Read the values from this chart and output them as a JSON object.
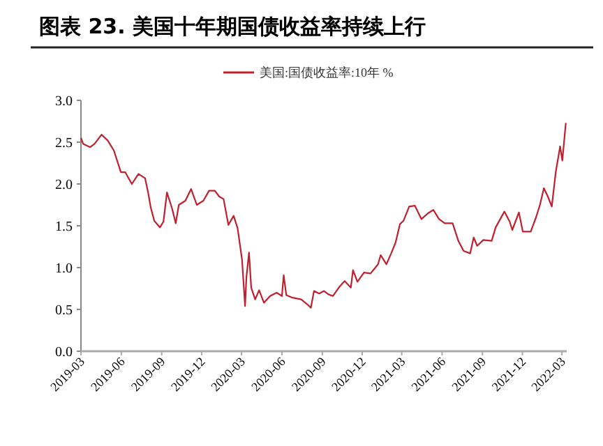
{
  "chart_data": {
    "type": "line",
    "title": "图表 23. 美国十年期国债收益率持续上行",
    "legend": "top",
    "grid": false,
    "x": [
      "2019-03-01",
      "2019-03-06",
      "2019-03-22",
      "2019-04-01",
      "2019-04-17",
      "2019-05-01",
      "2019-05-15",
      "2019-05-31",
      "2019-06-10",
      "2019-06-25",
      "2019-07-10",
      "2019-07-25",
      "2019-08-01",
      "2019-08-07",
      "2019-08-15",
      "2019-08-28",
      "2019-09-05",
      "2019-09-13",
      "2019-09-25",
      "2019-10-03",
      "2019-10-10",
      "2019-10-25",
      "2019-11-07",
      "2019-11-20",
      "2019-12-05",
      "2019-12-18",
      "2019-12-31",
      "2020-01-10",
      "2020-01-20",
      "2020-01-31",
      "2020-02-12",
      "2020-02-21",
      "2020-03-02",
      "2020-03-09",
      "2020-03-12",
      "2020-03-18",
      "2020-03-23",
      "2020-04-01",
      "2020-04-10",
      "2020-04-21",
      "2020-05-05",
      "2020-05-20",
      "2020-06-01",
      "2020-06-05",
      "2020-06-11",
      "2020-06-25",
      "2020-07-15",
      "2020-07-31",
      "2020-08-06",
      "2020-08-13",
      "2020-08-25",
      "2020-09-05",
      "2020-09-15",
      "2020-09-25",
      "2020-10-10",
      "2020-10-22",
      "2020-11-05",
      "2020-11-10",
      "2020-11-20",
      "2020-12-05",
      "2020-12-20",
      "2021-01-06",
      "2021-01-12",
      "2021-01-25",
      "2021-02-05",
      "2021-02-15",
      "2021-02-25",
      "2021-03-05",
      "2021-03-18",
      "2021-03-31",
      "2021-04-15",
      "2021-04-30",
      "2021-05-12",
      "2021-05-25",
      "2021-06-07",
      "2021-06-25",
      "2021-07-08",
      "2021-07-20",
      "2021-08-04",
      "2021-08-12",
      "2021-08-20",
      "2021-09-03",
      "2021-09-22",
      "2021-10-01",
      "2021-10-21",
      "2021-11-02",
      "2021-11-08",
      "2021-11-23",
      "2021-12-02",
      "2021-12-20",
      "2022-01-01",
      "2022-01-10",
      "2022-01-19",
      "2022-01-28",
      "2022-02-06",
      "2022-02-15",
      "2022-02-25",
      "2022-03-02",
      "2022-03-10"
    ],
    "series": [
      {
        "name": "美国:国债收益率:10年 %",
        "color": "#c0202e",
        "values": [
          2.55,
          2.48,
          2.44,
          2.48,
          2.59,
          2.52,
          2.4,
          2.14,
          2.14,
          2.0,
          2.12,
          2.07,
          1.9,
          1.72,
          1.56,
          1.48,
          1.55,
          1.9,
          1.7,
          1.53,
          1.75,
          1.8,
          1.94,
          1.75,
          1.8,
          1.92,
          1.92,
          1.85,
          1.82,
          1.51,
          1.62,
          1.47,
          1.1,
          0.54,
          0.88,
          1.18,
          0.76,
          0.62,
          0.73,
          0.58,
          0.66,
          0.7,
          0.66,
          0.91,
          0.67,
          0.64,
          0.62,
          0.55,
          0.52,
          0.72,
          0.69,
          0.72,
          0.68,
          0.66,
          0.77,
          0.84,
          0.76,
          0.97,
          0.83,
          0.94,
          0.93,
          1.04,
          1.15,
          1.04,
          1.17,
          1.3,
          1.52,
          1.56,
          1.73,
          1.74,
          1.58,
          1.65,
          1.69,
          1.58,
          1.53,
          1.53,
          1.32,
          1.2,
          1.17,
          1.36,
          1.26,
          1.33,
          1.32,
          1.48,
          1.67,
          1.55,
          1.45,
          1.66,
          1.43,
          1.43,
          1.6,
          1.75,
          1.95,
          1.85,
          1.73,
          2.14,
          2.45,
          2.28,
          2.73
        ]
      }
    ],
    "xlim": [
      "2019-03-01",
      "2022-03-12"
    ],
    "xticks": [
      {
        "value": "2019-03-01",
        "label": "2019-03"
      },
      {
        "value": "2019-06-01",
        "label": "2019-06"
      },
      {
        "value": "2019-09-01",
        "label": "2019-09"
      },
      {
        "value": "2019-12-01",
        "label": "2019-12"
      },
      {
        "value": "2020-03-01",
        "label": "2020-03"
      },
      {
        "value": "2020-06-01",
        "label": "2020-06"
      },
      {
        "value": "2020-09-01",
        "label": "2020-09"
      },
      {
        "value": "2020-12-01",
        "label": "2020-12"
      },
      {
        "value": "2021-03-01",
        "label": "2021-03"
      },
      {
        "value": "2021-06-01",
        "label": "2021-06"
      },
      {
        "value": "2021-09-01",
        "label": "2021-09"
      },
      {
        "value": "2021-12-01",
        "label": "2021-12"
      },
      {
        "value": "2022-03-01",
        "label": "2022-03"
      }
    ],
    "ylim": [
      0,
      3
    ],
    "yticks": [
      {
        "value": 0,
        "label": "0.0"
      },
      {
        "value": 0.5,
        "label": "0.5"
      },
      {
        "value": 1,
        "label": "1.0"
      },
      {
        "value": 1.5,
        "label": "1.5"
      },
      {
        "value": 2,
        "label": "2.0"
      },
      {
        "value": 2.5,
        "label": "2.5"
      },
      {
        "value": 3,
        "label": "3.0"
      }
    ]
  }
}
